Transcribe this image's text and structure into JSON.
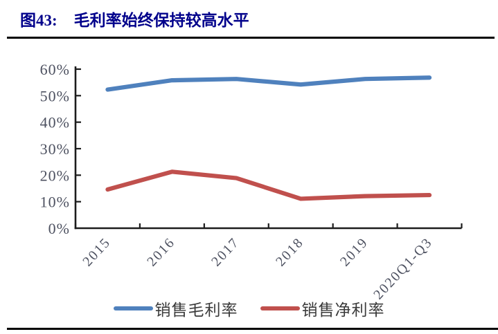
{
  "header": {
    "figure_label": "图43:",
    "title": "毛利率始终保持较高水平"
  },
  "chart_data": {
    "type": "line",
    "title": "图43: 毛利率始终保持较高水平",
    "categories": [
      "2015",
      "2016",
      "2017",
      "2018",
      "2019",
      "2020Q1-Q3"
    ],
    "series": [
      {
        "name": "销售毛利率",
        "color": "#4f81bd",
        "values": [
          52.3,
          55.8,
          56.3,
          54.2,
          56.3,
          56.8
        ]
      },
      {
        "name": "销售净利率",
        "color": "#c0504d",
        "values": [
          14.6,
          21.3,
          18.9,
          11.1,
          12.1,
          12.5
        ]
      }
    ],
    "xlabel": "",
    "ylabel": "",
    "ylim": [
      0,
      60
    ],
    "ytick_labels": [
      "0%",
      "10%",
      "20%",
      "30%",
      "40%",
      "50%",
      "60%"
    ],
    "grid": false,
    "legend_position": "bottom",
    "x_label_rotation": -47
  }
}
